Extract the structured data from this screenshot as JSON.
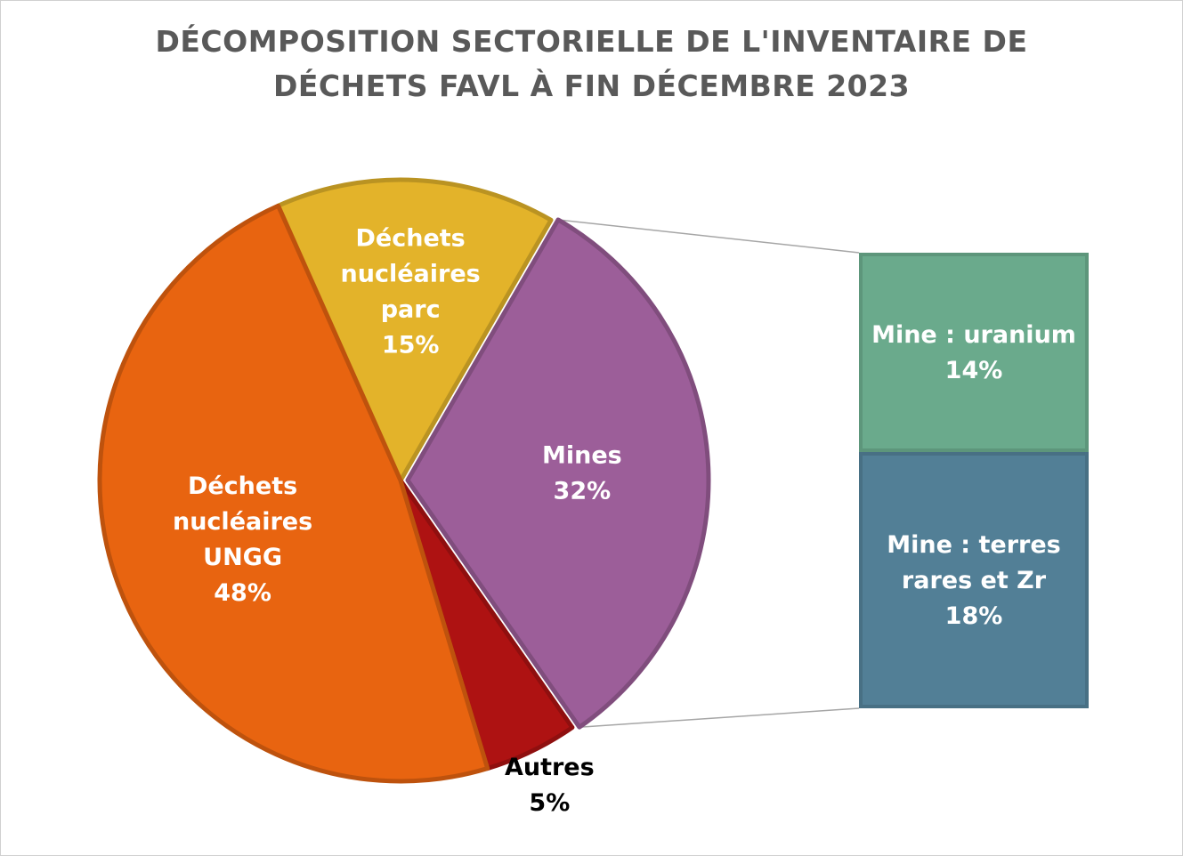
{
  "chart_data": {
    "type": "pie",
    "variant": "bar-of-pie",
    "title_lines": [
      "DÉCOMPOSITION SECTORIELLE DE L'INVENTAIRE DE",
      "DÉCHETS FAVL À FIN DÉCEMBRE 2023"
    ],
    "pie": {
      "slices": [
        {
          "label_lines": [
            "Déchets",
            "nucléaires",
            "parc"
          ],
          "value": 15,
          "value_label": "15%",
          "color": "#E3B32A"
        },
        {
          "label_lines": [
            "Mines"
          ],
          "value": 32,
          "value_label": "32%",
          "color": "#9C5E99"
        },
        {
          "label_lines": [
            "Autres"
          ],
          "value": 5,
          "value_label": "5%",
          "color": "#AE1212"
        },
        {
          "label_lines": [
            "Déchets",
            "nucléaires",
            "UNGG"
          ],
          "value": 48,
          "value_label": "48%",
          "color": "#E86410"
        }
      ]
    },
    "breakdown_of": "Mines",
    "bar": {
      "segments": [
        {
          "label_lines": [
            "Mine : uranium"
          ],
          "value": 14,
          "value_label": "14%",
          "color": "#6AAA8C"
        },
        {
          "label_lines": [
            "Mine : terres",
            "rares et Zr"
          ],
          "value": 18,
          "value_label": "18%",
          "color": "#527F96"
        }
      ]
    },
    "legend": "none"
  }
}
